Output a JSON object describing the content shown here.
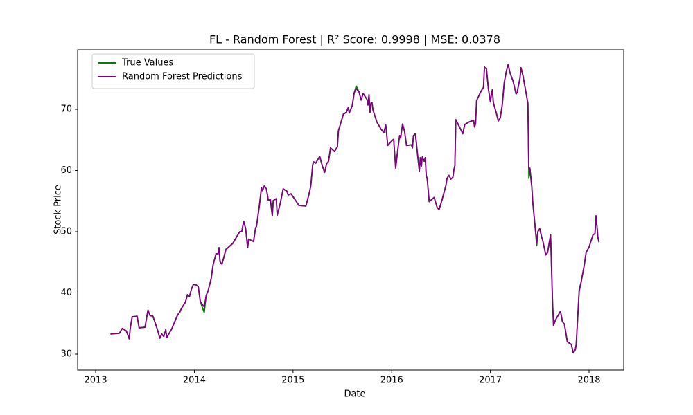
{
  "chart_data": {
    "type": "line",
    "title": "FL - Random Forest | R² Score: 0.9998 | MSE: 0.0378",
    "x_label": "Date",
    "y_label": "Stock Price",
    "x": [
      2013.15,
      2013.24,
      2013.27,
      2013.31,
      2013.34,
      2013.35,
      2013.37,
      2013.42,
      2013.44,
      2013.5,
      2013.52,
      2013.53,
      2013.55,
      2013.58,
      2013.63,
      2013.65,
      2013.67,
      2013.69,
      2013.71,
      2013.72,
      2013.77,
      2013.83,
      2013.85,
      2013.87,
      2013.91,
      2013.93,
      2013.95,
      2013.97,
      2013.99,
      2014.02,
      2014.04,
      2014.06,
      2014.1,
      2014.12,
      2014.14,
      2014.17,
      2014.19,
      2014.22,
      2014.24,
      2014.25,
      2014.26,
      2014.28,
      2014.3,
      2014.32,
      2014.39,
      2014.43,
      2014.46,
      2014.48,
      2014.5,
      2014.52,
      2014.54,
      2014.55,
      2014.6,
      2014.62,
      2014.63,
      2014.66,
      2014.68,
      2014.69,
      2014.71,
      2014.73,
      2014.75,
      2014.77,
      2014.79,
      2014.8,
      2014.83,
      2014.84,
      2014.87,
      2014.9,
      2014.94,
      2014.95,
      2014.98,
      2015.06,
      2015.13,
      2015.16,
      2015.18,
      2015.2,
      2015.21,
      2015.23,
      2015.27,
      2015.3,
      2015.32,
      2015.34,
      2015.36,
      2015.38,
      2015.42,
      2015.45,
      2015.46,
      2015.49,
      2015.51,
      2015.54,
      2015.56,
      2015.57,
      2015.58,
      2015.6,
      2015.62,
      2015.64,
      2015.67,
      2015.69,
      2015.71,
      2015.75,
      2015.76,
      2015.77,
      2015.78,
      2015.79,
      2015.8,
      2015.81,
      2015.85,
      2015.89,
      2015.92,
      2015.94,
      2015.96,
      2016.01,
      2016.02,
      2016.04,
      2016.06,
      2016.08,
      2016.09,
      2016.11,
      2016.13,
      2016.15,
      2016.2,
      2016.21,
      2016.22,
      2016.24,
      2016.26,
      2016.28,
      2016.29,
      2016.3,
      2016.31,
      2016.33,
      2016.34,
      2016.35,
      2016.36,
      2016.38,
      2016.43,
      2016.46,
      2016.48,
      2016.51,
      2016.55,
      2016.56,
      2016.58,
      2016.6,
      2016.62,
      2016.63,
      2016.64,
      2016.65,
      2016.7,
      2016.72,
      2016.74,
      2016.78,
      2016.83,
      2016.84,
      2016.85,
      2016.86,
      2016.9,
      2016.93,
      2016.94,
      2016.96,
      2016.98,
      2017.0,
      2017.01,
      2017.02,
      2017.03,
      2017.06,
      2017.08,
      2017.1,
      2017.12,
      2017.14,
      2017.16,
      2017.18,
      2017.2,
      2017.23,
      2017.26,
      2017.27,
      2017.3,
      2017.31,
      2017.33,
      2017.37,
      2017.38,
      2017.39,
      2017.4,
      2017.42,
      2017.43,
      2017.45,
      2017.47,
      2017.48,
      2017.5,
      2017.52,
      2017.53,
      2017.55,
      2017.56,
      2017.58,
      2017.61,
      2017.63,
      2017.64,
      2017.66,
      2017.71,
      2017.73,
      2017.75,
      2017.78,
      2017.8,
      2017.82,
      2017.84,
      2017.86,
      2017.87,
      2017.9,
      2017.92,
      2017.93,
      2017.95,
      2017.97,
      2018.0,
      2018.04,
      2018.06,
      2018.07,
      2018.08,
      2018.09,
      2018.1
    ],
    "series": [
      {
        "name": "True Values",
        "color": "green",
        "values": [
          33.3,
          33.4,
          34.2,
          33.8,
          32.5,
          34.2,
          36.1,
          36.2,
          34.3,
          34.4,
          36.3,
          37.2,
          36.3,
          36.2,
          33.8,
          32.6,
          33.3,
          32.9,
          34.0,
          32.7,
          34.1,
          36.4,
          36.8,
          37.5,
          38.5,
          39.7,
          39.4,
          40.6,
          41.4,
          41.3,
          41.0,
          38.6,
          36.8,
          39.6,
          40.4,
          42.3,
          44.6,
          46.4,
          46.4,
          47.4,
          45.1,
          44.7,
          45.9,
          47.1,
          48.1,
          49.2,
          50.0,
          50.0,
          51.7,
          50.5,
          47.4,
          48.8,
          48.4,
          50.6,
          50.9,
          54.4,
          57.2,
          56.7,
          57.5,
          57.0,
          55.1,
          55.3,
          52.6,
          55.1,
          55.4,
          52.7,
          54.6,
          57.0,
          56.6,
          56.0,
          56.2,
          54.3,
          54.2,
          56.0,
          57.5,
          61.0,
          61.4,
          61.2,
          62.3,
          60.6,
          59.7,
          61.1,
          61.5,
          63.7,
          63.1,
          63.9,
          66.5,
          68.1,
          69.2,
          69.5,
          70.3,
          69.4,
          69.8,
          70.6,
          72.7,
          73.8,
          72.8,
          71.5,
          72.6,
          71.6,
          70.7,
          72.4,
          69.5,
          71.0,
          71.1,
          69.9,
          67.9,
          66.8,
          66.2,
          67.4,
          64.1,
          65.0,
          65.1,
          60.4,
          63.2,
          65.7,
          65.3,
          67.6,
          66.4,
          64.1,
          64.2,
          63.7,
          65.7,
          66.0,
          62.9,
          59.9,
          62.1,
          60.7,
          62.2,
          61.5,
          62.1,
          59.2,
          58.6,
          54.9,
          55.6,
          54.0,
          53.6,
          55.2,
          57.6,
          58.7,
          59.2,
          58.6,
          58.9,
          60.1,
          60.8,
          68.3,
          66.7,
          66.0,
          67.5,
          67.9,
          68.2,
          67.1,
          67.7,
          71.4,
          72.8,
          73.6,
          76.9,
          76.6,
          73.3,
          71.2,
          72.4,
          73.2,
          71.1,
          69.4,
          68.1,
          68.6,
          70.7,
          74.3,
          76.1,
          77.3,
          75.9,
          74.6,
          72.5,
          72.7,
          75.1,
          76.8,
          75.5,
          71.9,
          71.0,
          58.7,
          60.4,
          57.3,
          54.7,
          51.4,
          47.7,
          50.0,
          50.5,
          49.1,
          48.6,
          47.1,
          46.2,
          46.6,
          49.5,
          38.4,
          34.7,
          35.6,
          37.0,
          35.3,
          34.9,
          32.0,
          31.8,
          31.6,
          30.2,
          30.7,
          31.6,
          40.6,
          41.8,
          42.7,
          44.4,
          46.6,
          47.5,
          49.5,
          49.7,
          52.6,
          50.9,
          49.0,
          48.3
        ]
      },
      {
        "name": "Random Forest Predictions",
        "color": "purple",
        "values": [
          33.3,
          33.4,
          34.2,
          33.8,
          32.5,
          34.2,
          36.1,
          36.2,
          34.3,
          34.4,
          36.3,
          37.2,
          36.3,
          36.2,
          33.8,
          32.6,
          33.3,
          32.9,
          34.0,
          32.7,
          34.1,
          36.4,
          36.8,
          37.5,
          38.5,
          39.7,
          39.4,
          40.6,
          41.4,
          41.3,
          41.0,
          38.6,
          37.7,
          39.6,
          40.4,
          42.3,
          44.6,
          46.4,
          46.4,
          47.4,
          45.1,
          44.7,
          45.9,
          47.1,
          48.1,
          49.2,
          50.0,
          50.0,
          51.7,
          50.5,
          47.4,
          48.8,
          48.4,
          50.6,
          50.9,
          54.4,
          57.2,
          56.7,
          57.5,
          57.0,
          55.1,
          55.3,
          52.6,
          55.1,
          55.4,
          52.7,
          54.6,
          57.0,
          56.6,
          56.0,
          56.2,
          54.3,
          54.2,
          56.0,
          57.5,
          61.0,
          61.4,
          61.2,
          62.3,
          60.6,
          59.7,
          61.1,
          61.5,
          63.7,
          63.1,
          63.9,
          66.5,
          68.1,
          69.2,
          69.5,
          70.3,
          69.4,
          69.8,
          70.6,
          72.7,
          73.4,
          72.8,
          71.5,
          72.6,
          71.6,
          70.7,
          72.4,
          69.5,
          71.0,
          71.1,
          69.9,
          67.9,
          66.8,
          66.2,
          67.4,
          64.1,
          65.0,
          65.1,
          60.4,
          63.2,
          65.7,
          65.3,
          67.6,
          66.4,
          64.1,
          64.2,
          63.7,
          65.7,
          66.0,
          62.9,
          59.9,
          62.1,
          60.7,
          62.2,
          61.5,
          62.1,
          59.2,
          58.6,
          54.9,
          55.6,
          54.0,
          53.6,
          55.2,
          57.6,
          58.7,
          59.2,
          58.6,
          58.9,
          60.1,
          60.8,
          68.3,
          66.7,
          66.0,
          67.5,
          67.9,
          68.2,
          67.1,
          67.7,
          71.4,
          72.8,
          73.6,
          76.9,
          76.6,
          73.3,
          71.2,
          72.4,
          73.2,
          71.1,
          69.4,
          68.1,
          68.6,
          70.7,
          74.3,
          76.1,
          77.3,
          75.9,
          74.6,
          72.5,
          72.7,
          75.1,
          76.8,
          75.5,
          71.9,
          71.0,
          60.4,
          60.4,
          57.3,
          54.7,
          51.4,
          48.1,
          50.0,
          50.5,
          49.1,
          48.6,
          47.1,
          46.2,
          46.6,
          49.5,
          38.4,
          34.7,
          35.6,
          37.0,
          35.3,
          34.9,
          32.0,
          31.8,
          31.6,
          30.2,
          30.7,
          31.6,
          40.3,
          41.8,
          42.7,
          44.4,
          46.6,
          47.5,
          49.5,
          49.7,
          52.6,
          50.9,
          49.0,
          48.3
        ]
      }
    ],
    "xlim": [
      2012.817,
      2018.351
    ],
    "xticks": [
      2013,
      2014,
      2015,
      2016,
      2017,
      2018
    ],
    "ylim": [
      27.4,
      79.72
    ],
    "yticks": [
      30,
      40,
      50,
      60,
      70
    ],
    "legend": "upper left"
  }
}
